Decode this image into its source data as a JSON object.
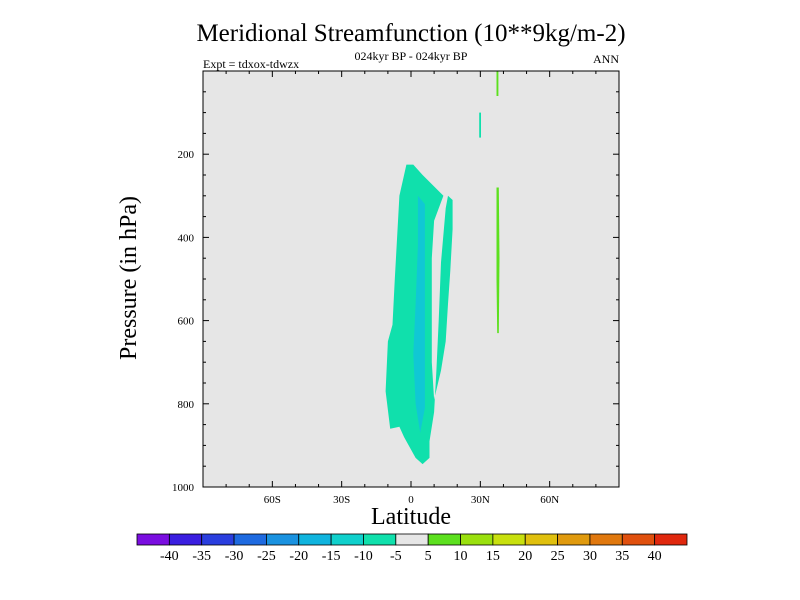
{
  "chart_data": {
    "type": "heatmap",
    "title": "Meridional Streamfunction (10**9kg/m-2)",
    "subtitle": "024kyr BP - 024kyr BP",
    "left_label": "Expt = tdxox-tdwzx",
    "right_label": "ANN",
    "xlabel": "Latitude",
    "ylabel": "Pressure (in hPa)",
    "xlim": [
      -90,
      90
    ],
    "ylim": [
      1000,
      0
    ],
    "y_reversed": true,
    "x_ticks": [
      {
        "value": -60,
        "label": "60S"
      },
      {
        "value": -30,
        "label": "30S"
      },
      {
        "value": 0,
        "label": "0"
      },
      {
        "value": 30,
        "label": "30N"
      },
      {
        "value": 60,
        "label": "60N"
      }
    ],
    "y_ticks": [
      {
        "value": 200,
        "label": "200"
      },
      {
        "value": 400,
        "label": "400"
      },
      {
        "value": 600,
        "label": "600"
      },
      {
        "value": 800,
        "label": "800"
      },
      {
        "value": 1000,
        "label": "1000"
      }
    ],
    "background_color": "#e6e6e6",
    "colorbar": {
      "levels": [
        "-40",
        "-35",
        "-30",
        "-25",
        "-20",
        "-15",
        "-10",
        "-5",
        "5",
        "10",
        "15",
        "20",
        "25",
        "30",
        "35",
        "40"
      ],
      "colors": [
        "#7a0ee0",
        "#3a1ee0",
        "#2a3ede",
        "#1e6ae0",
        "#1a92e0",
        "#10b4de",
        "#10d0cc",
        "#10e0ac",
        "#e6e6e6",
        "#5ce01e",
        "#9ae00e",
        "#c8e00e",
        "#e0c00e",
        "#e09a0e",
        "#e0780e",
        "#e0500e",
        "#e0280e"
      ]
    },
    "features": [
      {
        "name": "negative cell",
        "value_range": [
          -10,
          -5
        ],
        "color": "#10e0ac",
        "polygon": [
          [
            -2,
            225
          ],
          [
            -5,
            300
          ],
          [
            -7,
            500
          ],
          [
            -8,
            610
          ],
          [
            -10,
            650
          ],
          [
            -11,
            770
          ],
          [
            -9,
            860
          ],
          [
            -5,
            855
          ],
          [
            -3,
            880
          ],
          [
            2,
            930
          ],
          [
            5,
            945
          ],
          [
            8,
            930
          ],
          [
            8,
            890
          ],
          [
            10,
            820
          ],
          [
            11,
            720
          ],
          [
            12,
            600
          ],
          [
            13,
            460
          ],
          [
            15,
            330
          ],
          [
            16,
            300
          ],
          [
            18,
            310
          ],
          [
            18,
            380
          ],
          [
            17,
            480
          ],
          [
            16,
            560
          ],
          [
            15,
            650
          ],
          [
            13,
            720
          ],
          [
            10,
            790
          ],
          [
            9,
            700
          ],
          [
            9,
            600
          ],
          [
            9,
            450
          ],
          [
            10,
            360
          ],
          [
            14,
            300
          ],
          [
            5,
            250
          ],
          [
            1,
            225
          ]
        ]
      },
      {
        "name": "negative core",
        "value_range": [
          -15,
          -10
        ],
        "color": "#10c8d4",
        "polygon": [
          [
            3,
            300
          ],
          [
            3,
            420
          ],
          [
            2,
            560
          ],
          [
            1,
            680
          ],
          [
            2,
            800
          ],
          [
            4,
            870
          ],
          [
            6,
            810
          ],
          [
            6,
            680
          ],
          [
            6,
            560
          ],
          [
            6,
            420
          ],
          [
            6,
            320
          ]
        ]
      },
      {
        "name": "positive strip upper",
        "value_range": [
          5,
          10
        ],
        "color": "#5ce01e",
        "polygon": [
          [
            37,
            0
          ],
          [
            37.8,
            0
          ],
          [
            37.8,
            60
          ],
          [
            37,
            60
          ]
        ]
      },
      {
        "name": "negative strip",
        "value_range": [
          -10,
          -5
        ],
        "color": "#10e0ac",
        "polygon": [
          [
            29.5,
            100
          ],
          [
            30.3,
            100
          ],
          [
            30.3,
            160
          ],
          [
            29.5,
            160
          ]
        ]
      },
      {
        "name": "positive strip lower",
        "value_range": [
          5,
          10
        ],
        "color": "#5ce01e",
        "polygon": [
          [
            37,
            280
          ],
          [
            38,
            280
          ],
          [
            38.3,
            450
          ],
          [
            38,
            630
          ],
          [
            37.3,
            630
          ],
          [
            37,
            500
          ]
        ]
      }
    ]
  }
}
